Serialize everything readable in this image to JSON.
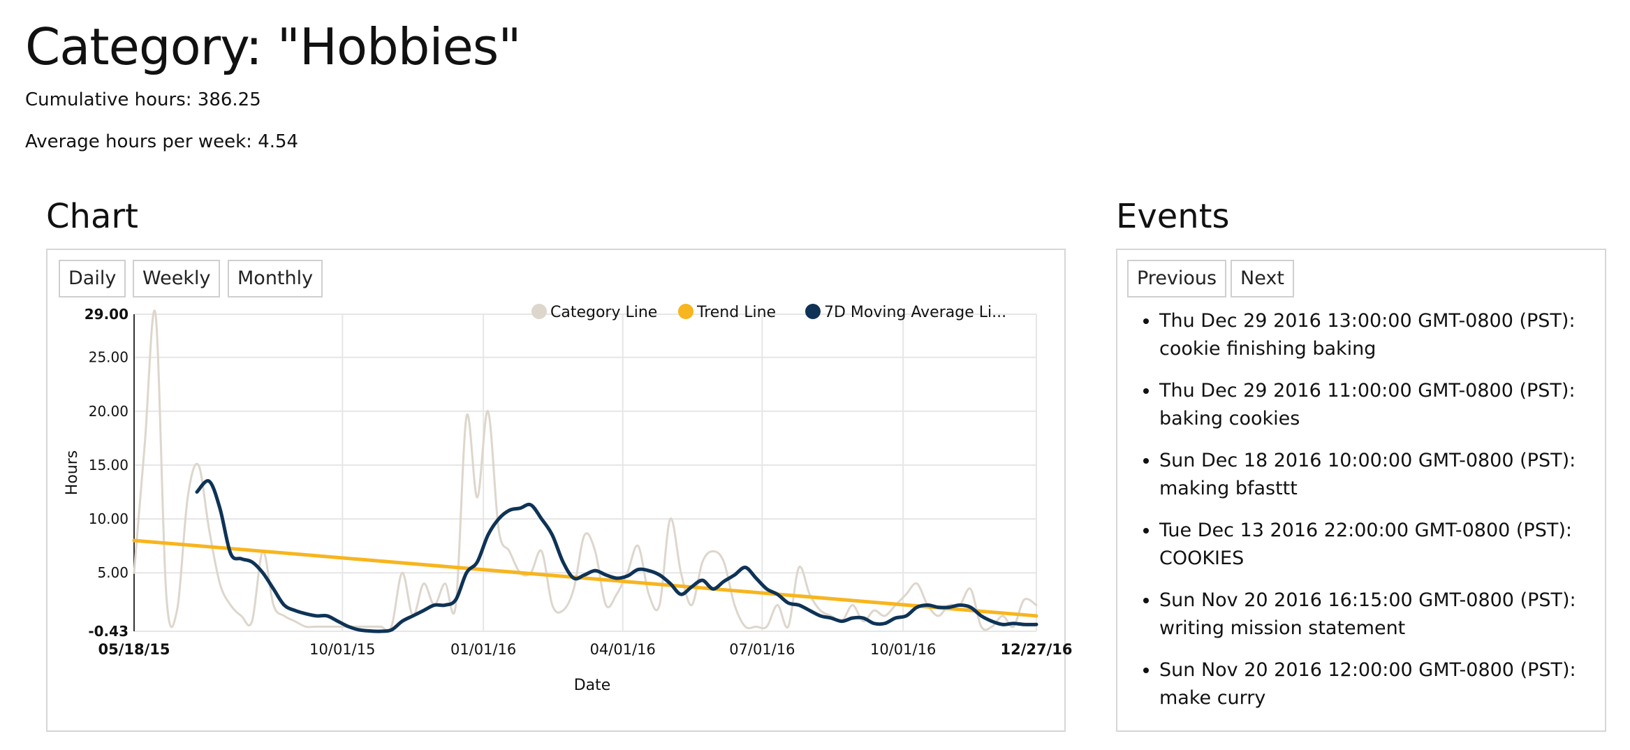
{
  "header": {
    "title": "Category: \"Hobbies\"",
    "cumulative": "Cumulative hours: 386.25",
    "average": "Average hours per week: 4.54"
  },
  "chart_section": {
    "title": "Chart",
    "buttons": [
      "Daily",
      "Weekly",
      "Monthly"
    ]
  },
  "events_section": {
    "title": "Events",
    "prev_label": "Previous",
    "next_label": "Next",
    "events": [
      {
        "datetime": "Thu Dec 29 2016 13:00:00 GMT-0800 (PST):",
        "text": "cookie finishing baking"
      },
      {
        "datetime": "Thu Dec 29 2016 11:00:00 GMT-0800 (PST):",
        "text": "baking cookies"
      },
      {
        "datetime": "Sun Dec 18 2016 10:00:00 GMT-0800 (PST):",
        "text": "making bfasttt"
      },
      {
        "datetime": "Tue Dec 13 2016 22:00:00 GMT-0800 (PST):",
        "text": "COOKIES"
      },
      {
        "datetime": "Sun Nov 20 2016 16:15:00 GMT-0800 (PST):",
        "text": "writing mission statement"
      },
      {
        "datetime": "Sun Nov 20 2016 12:00:00 GMT-0800 (PST):",
        "text": "make curry"
      }
    ]
  },
  "chart_data": {
    "type": "line",
    "xlabel": "Date",
    "ylabel": "Hours",
    "x_range": [
      "2015-05-18",
      "2016-12-27"
    ],
    "ylim": [
      -0.43,
      29.0
    ],
    "yticks": [
      {
        "value": 29.0,
        "label": "29.00",
        "bold": true
      },
      {
        "value": 25.0,
        "label": "25.00",
        "bold": false
      },
      {
        "value": 20.0,
        "label": "20.00",
        "bold": false
      },
      {
        "value": 15.0,
        "label": "15.00",
        "bold": false
      },
      {
        "value": 10.0,
        "label": "10.00",
        "bold": false
      },
      {
        "value": 5.0,
        "label": "5.00",
        "bold": false
      },
      {
        "value": -0.43,
        "label": "-0.43",
        "bold": true
      }
    ],
    "xticks": [
      {
        "date": "2015-05-18",
        "label": "05/18/15",
        "bold": true
      },
      {
        "date": "2015-10-01",
        "label": "10/01/15",
        "bold": false
      },
      {
        "date": "2016-01-01",
        "label": "01/01/16",
        "bold": false
      },
      {
        "date": "2016-04-01",
        "label": "04/01/16",
        "bold": false
      },
      {
        "date": "2016-07-01",
        "label": "07/01/16",
        "bold": false
      },
      {
        "date": "2016-10-01",
        "label": "10/01/16",
        "bold": false
      },
      {
        "date": "2016-12-27",
        "label": "12/27/16",
        "bold": true
      }
    ],
    "grid": true,
    "legend_position": "top-right",
    "series": [
      {
        "name": "Category Line",
        "color": "#ddd6cc",
        "points": [
          [
            "2015-05-18",
            5.0
          ],
          [
            "2015-05-25",
            17.0
          ],
          [
            "2015-06-01",
            29.0
          ],
          [
            "2015-06-08",
            3.0
          ],
          [
            "2015-06-15",
            1.5
          ],
          [
            "2015-06-22",
            12.0
          ],
          [
            "2015-06-29",
            15.0
          ],
          [
            "2015-07-06",
            9.0
          ],
          [
            "2015-07-13",
            4.0
          ],
          [
            "2015-07-20",
            2.0
          ],
          [
            "2015-07-27",
            1.0
          ],
          [
            "2015-08-03",
            0.5
          ],
          [
            "2015-08-10",
            7.0
          ],
          [
            "2015-08-17",
            2.0
          ],
          [
            "2015-08-24",
            1.0
          ],
          [
            "2015-08-31",
            0.5
          ],
          [
            "2015-09-07",
            0.0
          ],
          [
            "2015-09-14",
            0.0
          ],
          [
            "2015-09-21",
            0.0
          ],
          [
            "2015-09-28",
            0.0
          ],
          [
            "2015-10-05",
            0.0
          ],
          [
            "2015-10-12",
            0.0
          ],
          [
            "2015-10-19",
            0.0
          ],
          [
            "2015-10-26",
            0.0
          ],
          [
            "2015-11-02",
            0.0
          ],
          [
            "2015-11-09",
            5.0
          ],
          [
            "2015-11-16",
            1.0
          ],
          [
            "2015-11-23",
            4.0
          ],
          [
            "2015-11-30",
            2.0
          ],
          [
            "2015-12-07",
            4.0
          ],
          [
            "2015-12-14",
            2.0
          ],
          [
            "2015-12-21",
            19.5
          ],
          [
            "2015-12-28",
            12.0
          ],
          [
            "2016-01-04",
            20.0
          ],
          [
            "2016-01-11",
            9.0
          ],
          [
            "2016-01-18",
            7.0
          ],
          [
            "2016-01-25",
            5.0
          ],
          [
            "2016-02-01",
            5.0
          ],
          [
            "2016-02-08",
            7.0
          ],
          [
            "2016-02-15",
            2.0
          ],
          [
            "2016-02-22",
            1.5
          ],
          [
            "2016-02-29",
            3.5
          ],
          [
            "2016-03-07",
            8.5
          ],
          [
            "2016-03-14",
            7.0
          ],
          [
            "2016-03-21",
            2.0
          ],
          [
            "2016-03-28",
            3.0
          ],
          [
            "2016-04-04",
            5.0
          ],
          [
            "2016-04-11",
            7.5
          ],
          [
            "2016-04-18",
            3.0
          ],
          [
            "2016-04-25",
            2.0
          ],
          [
            "2016-05-02",
            10.0
          ],
          [
            "2016-05-09",
            5.0
          ],
          [
            "2016-05-16",
            2.0
          ],
          [
            "2016-05-23",
            6.0
          ],
          [
            "2016-05-30",
            7.0
          ],
          [
            "2016-06-06",
            6.0
          ],
          [
            "2016-06-13",
            2.0
          ],
          [
            "2016-06-20",
            0.0
          ],
          [
            "2016-06-27",
            0.0
          ],
          [
            "2016-07-04",
            0.0
          ],
          [
            "2016-07-11",
            2.0
          ],
          [
            "2016-07-18",
            0.0
          ],
          [
            "2016-07-25",
            5.5
          ],
          [
            "2016-08-01",
            3.0
          ],
          [
            "2016-08-08",
            1.5
          ],
          [
            "2016-08-15",
            1.0
          ],
          [
            "2016-08-22",
            0.5
          ],
          [
            "2016-08-29",
            2.0
          ],
          [
            "2016-09-05",
            0.5
          ],
          [
            "2016-09-12",
            1.5
          ],
          [
            "2016-09-19",
            1.0
          ],
          [
            "2016-09-26",
            2.0
          ],
          [
            "2016-10-03",
            3.0
          ],
          [
            "2016-10-10",
            4.0
          ],
          [
            "2016-10-17",
            2.0
          ],
          [
            "2016-10-24",
            1.0
          ],
          [
            "2016-10-31",
            2.0
          ],
          [
            "2016-11-07",
            2.0
          ],
          [
            "2016-11-14",
            3.5
          ],
          [
            "2016-11-21",
            0.0
          ],
          [
            "2016-11-28",
            0.0
          ],
          [
            "2016-12-05",
            1.0
          ],
          [
            "2016-12-12",
            0.0
          ],
          [
            "2016-12-19",
            2.5
          ],
          [
            "2016-12-27",
            2.0
          ]
        ]
      },
      {
        "name": "Trend Line",
        "color": "#f7b51e",
        "points": [
          [
            "2015-05-18",
            8.0
          ],
          [
            "2016-12-27",
            1.0
          ]
        ]
      },
      {
        "name": "7D Moving Average Li...",
        "color": "#0e3356",
        "points": [
          [
            "2015-06-28",
            12.5
          ],
          [
            "2015-07-06",
            13.5
          ],
          [
            "2015-07-13",
            11.0
          ],
          [
            "2015-07-20",
            6.8
          ],
          [
            "2015-07-27",
            6.3
          ],
          [
            "2015-08-03",
            6.0
          ],
          [
            "2015-08-10",
            5.0
          ],
          [
            "2015-08-17",
            3.5
          ],
          [
            "2015-08-24",
            2.0
          ],
          [
            "2015-08-31",
            1.5
          ],
          [
            "2015-09-07",
            1.2
          ],
          [
            "2015-09-14",
            1.0
          ],
          [
            "2015-09-21",
            1.0
          ],
          [
            "2015-09-28",
            0.5
          ],
          [
            "2015-10-05",
            0.0
          ],
          [
            "2015-10-12",
            -0.3
          ],
          [
            "2015-10-19",
            -0.4
          ],
          [
            "2015-10-26",
            -0.43
          ],
          [
            "2015-11-02",
            -0.3
          ],
          [
            "2015-11-09",
            0.5
          ],
          [
            "2015-11-16",
            1.0
          ],
          [
            "2015-11-23",
            1.5
          ],
          [
            "2015-11-30",
            2.0
          ],
          [
            "2015-12-07",
            2.0
          ],
          [
            "2015-12-14",
            2.5
          ],
          [
            "2015-12-21",
            5.0
          ],
          [
            "2015-12-28",
            6.0
          ],
          [
            "2016-01-04",
            8.5
          ],
          [
            "2016-01-11",
            10.0
          ],
          [
            "2016-01-18",
            10.8
          ],
          [
            "2016-01-25",
            11.0
          ],
          [
            "2016-02-01",
            11.3
          ],
          [
            "2016-02-08",
            10.0
          ],
          [
            "2016-02-15",
            8.5
          ],
          [
            "2016-02-22",
            6.0
          ],
          [
            "2016-02-29",
            4.5
          ],
          [
            "2016-03-07",
            4.8
          ],
          [
            "2016-03-14",
            5.2
          ],
          [
            "2016-03-21",
            4.8
          ],
          [
            "2016-03-28",
            4.5
          ],
          [
            "2016-04-04",
            4.7
          ],
          [
            "2016-04-11",
            5.3
          ],
          [
            "2016-04-18",
            5.2
          ],
          [
            "2016-04-25",
            4.8
          ],
          [
            "2016-05-02",
            4.0
          ],
          [
            "2016-05-09",
            3.0
          ],
          [
            "2016-05-16",
            3.7
          ],
          [
            "2016-05-23",
            4.3
          ],
          [
            "2016-05-30",
            3.5
          ],
          [
            "2016-06-06",
            4.2
          ],
          [
            "2016-06-13",
            4.8
          ],
          [
            "2016-06-20",
            5.5
          ],
          [
            "2016-06-27",
            4.5
          ],
          [
            "2016-07-04",
            3.5
          ],
          [
            "2016-07-11",
            3.0
          ],
          [
            "2016-07-18",
            2.2
          ],
          [
            "2016-07-25",
            2.0
          ],
          [
            "2016-08-01",
            1.5
          ],
          [
            "2016-08-08",
            1.0
          ],
          [
            "2016-08-15",
            0.8
          ],
          [
            "2016-08-22",
            0.5
          ],
          [
            "2016-08-29",
            0.8
          ],
          [
            "2016-09-05",
            0.8
          ],
          [
            "2016-09-12",
            0.3
          ],
          [
            "2016-09-19",
            0.3
          ],
          [
            "2016-09-26",
            0.8
          ],
          [
            "2016-10-03",
            1.0
          ],
          [
            "2016-10-10",
            1.8
          ],
          [
            "2016-10-17",
            2.0
          ],
          [
            "2016-10-24",
            1.8
          ],
          [
            "2016-10-31",
            1.8
          ],
          [
            "2016-11-07",
            2.0
          ],
          [
            "2016-11-14",
            1.8
          ],
          [
            "2016-11-21",
            1.0
          ],
          [
            "2016-11-28",
            0.5
          ],
          [
            "2016-12-05",
            0.2
          ],
          [
            "2016-12-12",
            0.3
          ],
          [
            "2016-12-19",
            0.2
          ],
          [
            "2016-12-27",
            0.2
          ]
        ]
      }
    ]
  }
}
